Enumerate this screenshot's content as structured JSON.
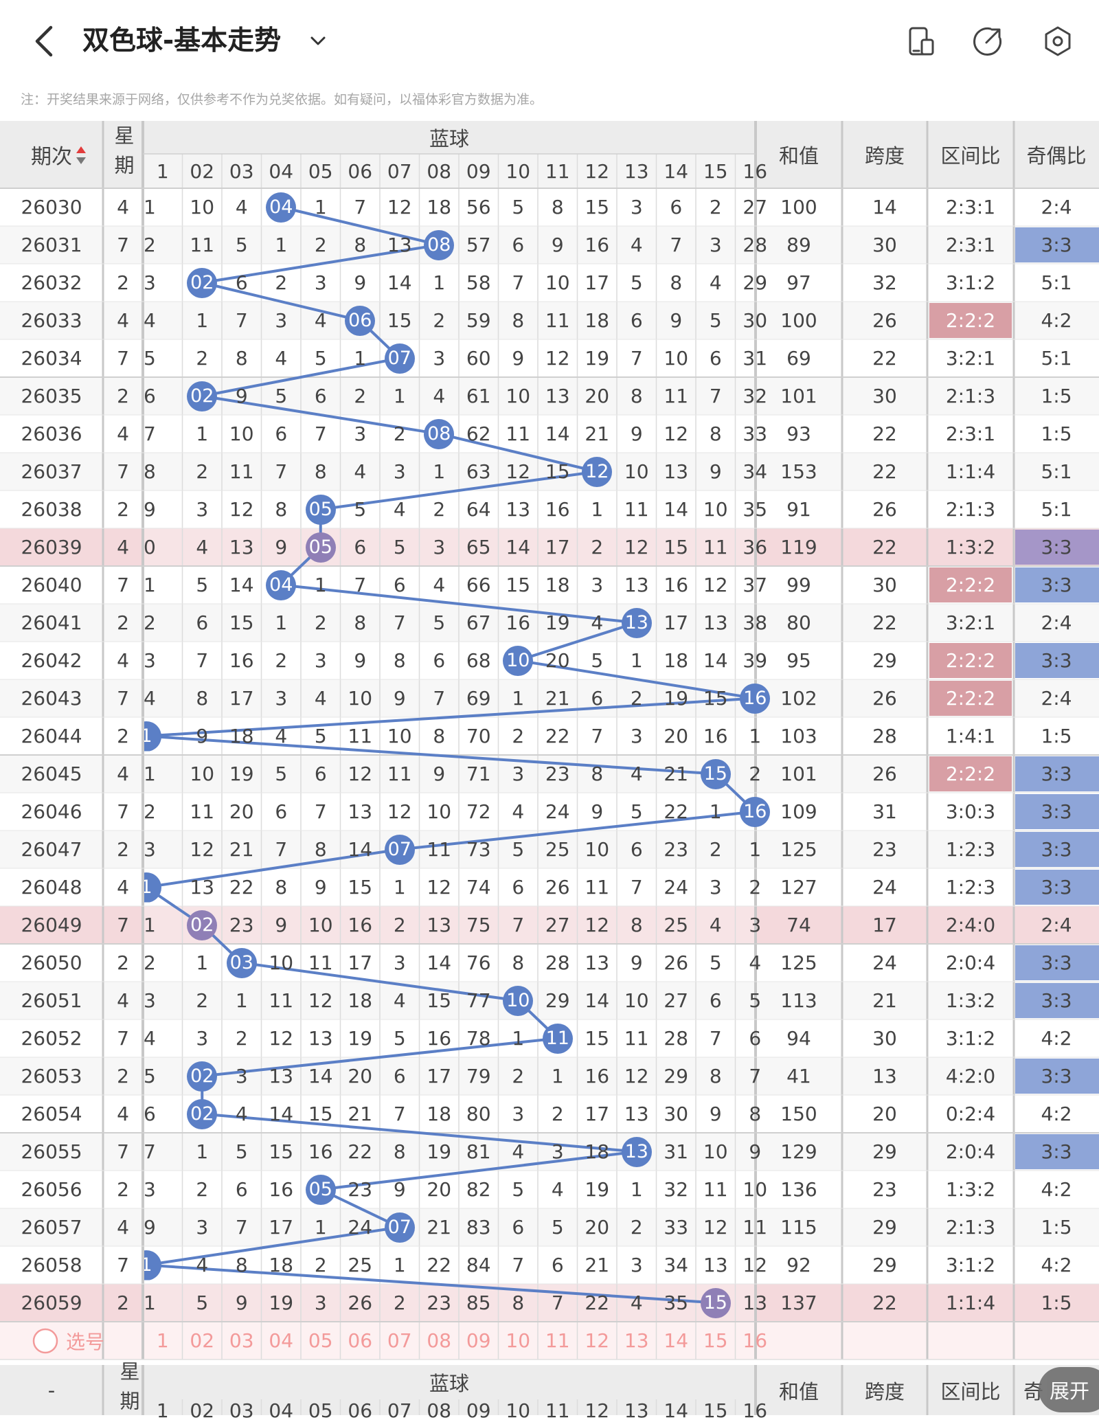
{
  "header": {
    "title": "双色球-基本走势",
    "note": "注：开奖结果来源于网络，仅供参考不作为兑奖依据。如有疑问，以福体彩官方数据为准。",
    "icons": [
      "back-icon",
      "chevron-down-icon",
      "phone-screen-icon",
      "share-icon",
      "settings-icon"
    ]
  },
  "table": {
    "col_period": "期次",
    "col_week": "星期",
    "blue_ball": "蓝球",
    "col_sum": "和值",
    "col_span": "跨度",
    "col_zone": "区间比",
    "col_parity": "奇偶比",
    "numbers": [
      "1",
      "02",
      "03",
      "04",
      "05",
      "06",
      "07",
      "08",
      "09",
      "10",
      "11",
      "12",
      "13",
      "14",
      "15",
      "16"
    ],
    "select_label": "选号",
    "rows": [
      {
        "period": "26030",
        "week": "4",
        "vals": [
          "1",
          "10",
          "4",
          "04",
          "1",
          "7",
          "12",
          "18",
          "56",
          "5",
          "8",
          "15",
          "3",
          "6",
          "2",
          "27"
        ],
        "ball": 4,
        "sum": "100",
        "span": "14",
        "zone": "2:3:1",
        "parity": "2:4",
        "hl": false,
        "zhl": false,
        "phl": false
      },
      {
        "period": "26031",
        "week": "7",
        "vals": [
          "2",
          "11",
          "5",
          "1",
          "2",
          "8",
          "13",
          "08",
          "57",
          "6",
          "9",
          "16",
          "4",
          "7",
          "3",
          "28"
        ],
        "ball": 8,
        "sum": "89",
        "span": "30",
        "zone": "2:3:1",
        "parity": "3:3",
        "hl": false,
        "zhl": false,
        "phl": true
      },
      {
        "period": "26032",
        "week": "2",
        "vals": [
          "3",
          "02",
          "6",
          "2",
          "3",
          "9",
          "14",
          "1",
          "58",
          "7",
          "10",
          "17",
          "5",
          "8",
          "4",
          "29"
        ],
        "ball": 2,
        "sum": "97",
        "span": "32",
        "zone": "3:1:2",
        "parity": "5:1",
        "hl": false,
        "zhl": false,
        "phl": false
      },
      {
        "period": "26033",
        "week": "4",
        "vals": [
          "4",
          "1",
          "7",
          "3",
          "4",
          "06",
          "15",
          "2",
          "59",
          "8",
          "11",
          "18",
          "6",
          "9",
          "5",
          "30"
        ],
        "ball": 6,
        "sum": "100",
        "span": "26",
        "zone": "2:2:2",
        "parity": "4:2",
        "hl": false,
        "zhl": true,
        "phl": false
      },
      {
        "period": "26034",
        "week": "7",
        "vals": [
          "5",
          "2",
          "8",
          "4",
          "5",
          "1",
          "07",
          "3",
          "60",
          "9",
          "12",
          "19",
          "7",
          "10",
          "6",
          "31"
        ],
        "ball": 7,
        "sum": "69",
        "span": "22",
        "zone": "3:2:1",
        "parity": "5:1",
        "hl": false,
        "zhl": false,
        "phl": false
      },
      {
        "period": "26035",
        "week": "2",
        "vals": [
          "6",
          "02",
          "9",
          "5",
          "6",
          "2",
          "1",
          "4",
          "61",
          "10",
          "13",
          "20",
          "8",
          "11",
          "7",
          "32"
        ],
        "ball": 2,
        "sum": "101",
        "span": "30",
        "zone": "2:1:3",
        "parity": "1:5",
        "hl": false,
        "zhl": false,
        "phl": false
      },
      {
        "period": "26036",
        "week": "4",
        "vals": [
          "7",
          "1",
          "10",
          "6",
          "7",
          "3",
          "2",
          "08",
          "62",
          "11",
          "14",
          "21",
          "9",
          "12",
          "8",
          "33"
        ],
        "ball": 8,
        "sum": "93",
        "span": "22",
        "zone": "2:3:1",
        "parity": "1:5",
        "hl": false,
        "zhl": false,
        "phl": false
      },
      {
        "period": "26037",
        "week": "7",
        "vals": [
          "8",
          "2",
          "11",
          "7",
          "8",
          "4",
          "3",
          "1",
          "63",
          "12",
          "15",
          "12",
          "10",
          "13",
          "9",
          "34"
        ],
        "ball": 12,
        "sum": "153",
        "span": "22",
        "zone": "1:1:4",
        "parity": "5:1",
        "hl": false,
        "zhl": false,
        "phl": false
      },
      {
        "period": "26038",
        "week": "2",
        "vals": [
          "9",
          "3",
          "12",
          "8",
          "05",
          "5",
          "4",
          "2",
          "64",
          "13",
          "16",
          "1",
          "11",
          "14",
          "10",
          "35"
        ],
        "ball": 5,
        "sum": "91",
        "span": "26",
        "zone": "2:1:3",
        "parity": "5:1",
        "hl": false,
        "zhl": false,
        "phl": false
      },
      {
        "period": "26039",
        "week": "4",
        "vals": [
          "0",
          "4",
          "13",
          "9",
          "05",
          "6",
          "5",
          "3",
          "65",
          "14",
          "17",
          "2",
          "12",
          "15",
          "11",
          "36"
        ],
        "ball": 5,
        "sum": "119",
        "span": "22",
        "zone": "1:3:2",
        "parity": "3:3",
        "hl": true,
        "zhl": false,
        "phl": true
      },
      {
        "period": "26040",
        "week": "7",
        "vals": [
          "1",
          "5",
          "14",
          "04",
          "1",
          "7",
          "6",
          "4",
          "66",
          "15",
          "18",
          "3",
          "13",
          "16",
          "12",
          "37"
        ],
        "ball": 4,
        "sum": "99",
        "span": "30",
        "zone": "2:2:2",
        "parity": "3:3",
        "hl": false,
        "zhl": true,
        "phl": true
      },
      {
        "period": "26041",
        "week": "2",
        "vals": [
          "2",
          "6",
          "15",
          "1",
          "2",
          "8",
          "7",
          "5",
          "67",
          "16",
          "19",
          "4",
          "13",
          "17",
          "13",
          "38"
        ],
        "ball": 13,
        "sum": "80",
        "span": "22",
        "zone": "3:2:1",
        "parity": "2:4",
        "hl": false,
        "zhl": false,
        "phl": false
      },
      {
        "period": "26042",
        "week": "4",
        "vals": [
          "3",
          "7",
          "16",
          "2",
          "3",
          "9",
          "8",
          "6",
          "68",
          "10",
          "20",
          "5",
          "1",
          "18",
          "14",
          "39"
        ],
        "ball": 10,
        "sum": "95",
        "span": "29",
        "zone": "2:2:2",
        "parity": "3:3",
        "hl": false,
        "zhl": true,
        "phl": true
      },
      {
        "period": "26043",
        "week": "7",
        "vals": [
          "4",
          "8",
          "17",
          "3",
          "4",
          "10",
          "9",
          "7",
          "69",
          "1",
          "21",
          "6",
          "2",
          "19",
          "15",
          "16"
        ],
        "ball": 16,
        "sum": "102",
        "span": "26",
        "zone": "2:2:2",
        "parity": "2:4",
        "hl": false,
        "zhl": true,
        "phl": false
      },
      {
        "period": "26044",
        "week": "2",
        "vals": [
          "1",
          "9",
          "18",
          "4",
          "5",
          "11",
          "10",
          "8",
          "70",
          "2",
          "22",
          "7",
          "3",
          "20",
          "16",
          "1"
        ],
        "ball": 1,
        "sum": "103",
        "span": "28",
        "zone": "1:4:1",
        "parity": "1:5",
        "hl": false,
        "zhl": false,
        "phl": false
      },
      {
        "period": "26045",
        "week": "4",
        "vals": [
          "1",
          "10",
          "19",
          "5",
          "6",
          "12",
          "11",
          "9",
          "71",
          "3",
          "23",
          "8",
          "4",
          "21",
          "15",
          "2"
        ],
        "ball": 15,
        "sum": "101",
        "span": "26",
        "zone": "2:2:2",
        "parity": "3:3",
        "hl": false,
        "zhl": true,
        "phl": true
      },
      {
        "period": "26046",
        "week": "7",
        "vals": [
          "2",
          "11",
          "20",
          "6",
          "7",
          "13",
          "12",
          "10",
          "72",
          "4",
          "24",
          "9",
          "5",
          "22",
          "1",
          "16"
        ],
        "ball": 16,
        "sum": "109",
        "span": "31",
        "zone": "3:0:3",
        "parity": "3:3",
        "hl": false,
        "zhl": false,
        "phl": true
      },
      {
        "period": "26047",
        "week": "2",
        "vals": [
          "3",
          "12",
          "21",
          "7",
          "8",
          "14",
          "07",
          "11",
          "73",
          "5",
          "25",
          "10",
          "6",
          "23",
          "2",
          "1"
        ],
        "ball": 7,
        "sum": "125",
        "span": "23",
        "zone": "1:2:3",
        "parity": "3:3",
        "hl": false,
        "zhl": false,
        "phl": true
      },
      {
        "period": "26048",
        "week": "4",
        "vals": [
          "1",
          "13",
          "22",
          "8",
          "9",
          "15",
          "1",
          "12",
          "74",
          "6",
          "26",
          "11",
          "7",
          "24",
          "3",
          "2"
        ],
        "ball": 1,
        "sum": "127",
        "span": "24",
        "zone": "1:2:3",
        "parity": "3:3",
        "hl": false,
        "zhl": false,
        "phl": true
      },
      {
        "period": "26049",
        "week": "7",
        "vals": [
          "1",
          "02",
          "23",
          "9",
          "10",
          "16",
          "2",
          "13",
          "75",
          "7",
          "27",
          "12",
          "8",
          "25",
          "4",
          "3"
        ],
        "ball": 2,
        "sum": "74",
        "span": "17",
        "zone": "2:4:0",
        "parity": "2:4",
        "hl": true,
        "zhl": false,
        "phl": false
      },
      {
        "period": "26050",
        "week": "2",
        "vals": [
          "2",
          "1",
          "03",
          "10",
          "11",
          "17",
          "3",
          "14",
          "76",
          "8",
          "28",
          "13",
          "9",
          "26",
          "5",
          "4"
        ],
        "ball": 3,
        "sum": "125",
        "span": "24",
        "zone": "2:0:4",
        "parity": "3:3",
        "hl": false,
        "zhl": false,
        "phl": true
      },
      {
        "period": "26051",
        "week": "4",
        "vals": [
          "3",
          "2",
          "1",
          "11",
          "12",
          "18",
          "4",
          "15",
          "77",
          "10",
          "29",
          "14",
          "10",
          "27",
          "6",
          "5"
        ],
        "ball": 10,
        "sum": "113",
        "span": "21",
        "zone": "1:3:2",
        "parity": "3:3",
        "hl": false,
        "zhl": false,
        "phl": true
      },
      {
        "period": "26052",
        "week": "7",
        "vals": [
          "4",
          "3",
          "2",
          "12",
          "13",
          "19",
          "5",
          "16",
          "78",
          "1",
          "11",
          "15",
          "11",
          "28",
          "7",
          "6"
        ],
        "ball": 11,
        "sum": "94",
        "span": "30",
        "zone": "3:1:2",
        "parity": "4:2",
        "hl": false,
        "zhl": false,
        "phl": false
      },
      {
        "period": "26053",
        "week": "2",
        "vals": [
          "5",
          "02",
          "3",
          "13",
          "14",
          "20",
          "6",
          "17",
          "79",
          "2",
          "1",
          "16",
          "12",
          "29",
          "8",
          "7"
        ],
        "ball": 2,
        "sum": "41",
        "span": "13",
        "zone": "4:2:0",
        "parity": "3:3",
        "hl": false,
        "zhl": false,
        "phl": true
      },
      {
        "period": "26054",
        "week": "4",
        "vals": [
          "6",
          "02",
          "4",
          "14",
          "15",
          "21",
          "7",
          "18",
          "80",
          "3",
          "2",
          "17",
          "13",
          "30",
          "9",
          "8"
        ],
        "ball": 2,
        "sum": "150",
        "span": "20",
        "zone": "0:2:4",
        "parity": "4:2",
        "hl": false,
        "zhl": false,
        "phl": false
      },
      {
        "period": "26055",
        "week": "7",
        "vals": [
          "7",
          "1",
          "5",
          "15",
          "16",
          "22",
          "8",
          "19",
          "81",
          "4",
          "3",
          "18",
          "13",
          "31",
          "10",
          "9"
        ],
        "ball": 13,
        "sum": "129",
        "span": "29",
        "zone": "2:0:4",
        "parity": "3:3",
        "hl": false,
        "zhl": false,
        "phl": true
      },
      {
        "period": "26056",
        "week": "2",
        "vals": [
          "3",
          "2",
          "6",
          "16",
          "05",
          "23",
          "9",
          "20",
          "82",
          "5",
          "4",
          "19",
          "1",
          "32",
          "11",
          "10"
        ],
        "ball": 5,
        "sum": "136",
        "span": "23",
        "zone": "1:3:2",
        "parity": "4:2",
        "hl": false,
        "zhl": false,
        "phl": false
      },
      {
        "period": "26057",
        "week": "4",
        "vals": [
          "9",
          "3",
          "7",
          "17",
          "1",
          "24",
          "07",
          "21",
          "83",
          "6",
          "5",
          "20",
          "2",
          "33",
          "12",
          "11"
        ],
        "ball": 7,
        "sum": "115",
        "span": "29",
        "zone": "2:1:3",
        "parity": "1:5",
        "hl": false,
        "zhl": false,
        "phl": false
      },
      {
        "period": "26058",
        "week": "7",
        "vals": [
          "1",
          "4",
          "8",
          "18",
          "2",
          "25",
          "1",
          "22",
          "84",
          "7",
          "6",
          "21",
          "3",
          "34",
          "13",
          "12"
        ],
        "ball": 1,
        "sum": "92",
        "span": "29",
        "zone": "3:1:2",
        "parity": "4:2",
        "hl": false,
        "zhl": false,
        "phl": false
      },
      {
        "period": "26059",
        "week": "2",
        "vals": [
          "1",
          "5",
          "9",
          "19",
          "3",
          "26",
          "2",
          "23",
          "85",
          "8",
          "7",
          "22",
          "4",
          "35",
          "15",
          "13"
        ],
        "ball": 15,
        "sum": "137",
        "span": "22",
        "zone": "1:1:4",
        "parity": "1:5",
        "hl": true,
        "zhl": false,
        "phl": false
      }
    ]
  },
  "footer": {
    "dash": "-",
    "col_week": "星期",
    "blue_ball": "蓝球",
    "col_sum": "和值",
    "col_span": "跨度",
    "col_zone": "区间比",
    "col_parity_partial": "奇",
    "expand": "展开"
  },
  "colors": {
    "ball": "#5b7fc6",
    "ball_dim": "#8f7fb6",
    "row_highlight": "#f4d9dc",
    "zone_highlight": "#d89fa5",
    "parity_highlight": "#8ea5d8",
    "parity_highlight_dim": "#a596c8",
    "header_bg": "#ececec",
    "select_pink": "#f39a9a"
  }
}
